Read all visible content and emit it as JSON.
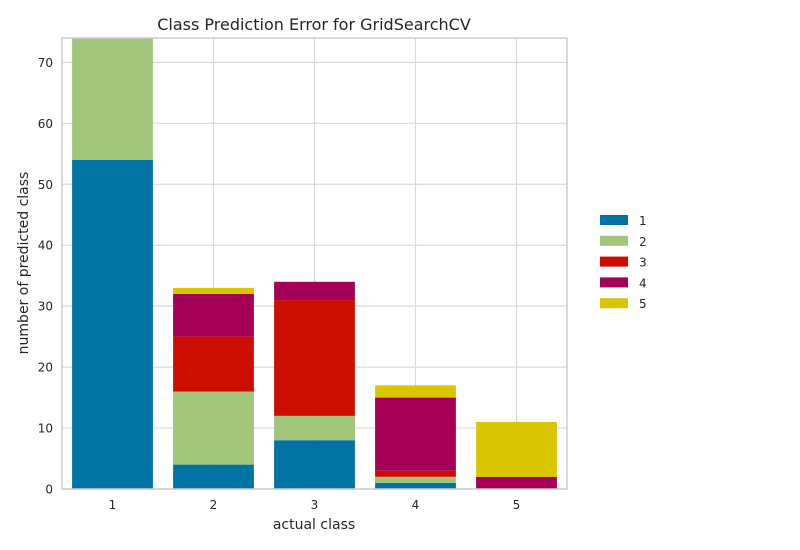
{
  "chart_data": {
    "type": "bar",
    "stacked": true,
    "title": "Class Prediction Error for GridSearchCV",
    "xlabel": "actual class",
    "ylabel": "number of predicted class",
    "categories": [
      "1",
      "2",
      "3",
      "4",
      "5"
    ],
    "ylim": [
      0,
      74
    ],
    "yticks": [
      0,
      10,
      20,
      30,
      40,
      50,
      60,
      70
    ],
    "grid": true,
    "legend_position": "right",
    "series": [
      {
        "name": "1",
        "color": "#0072a3",
        "values": [
          54,
          4,
          8,
          1,
          0
        ]
      },
      {
        "name": "2",
        "color": "#a0c57b",
        "values": [
          20,
          12,
          4,
          1,
          0
        ]
      },
      {
        "name": "3",
        "color": "#cc0e00",
        "values": [
          0,
          9,
          19,
          1,
          0
        ]
      },
      {
        "name": "4",
        "color": "#a50058",
        "values": [
          0,
          7,
          3,
          12,
          2
        ]
      },
      {
        "name": "5",
        "color": "#d8c600",
        "values": [
          0,
          1,
          0,
          2,
          9
        ]
      }
    ]
  }
}
